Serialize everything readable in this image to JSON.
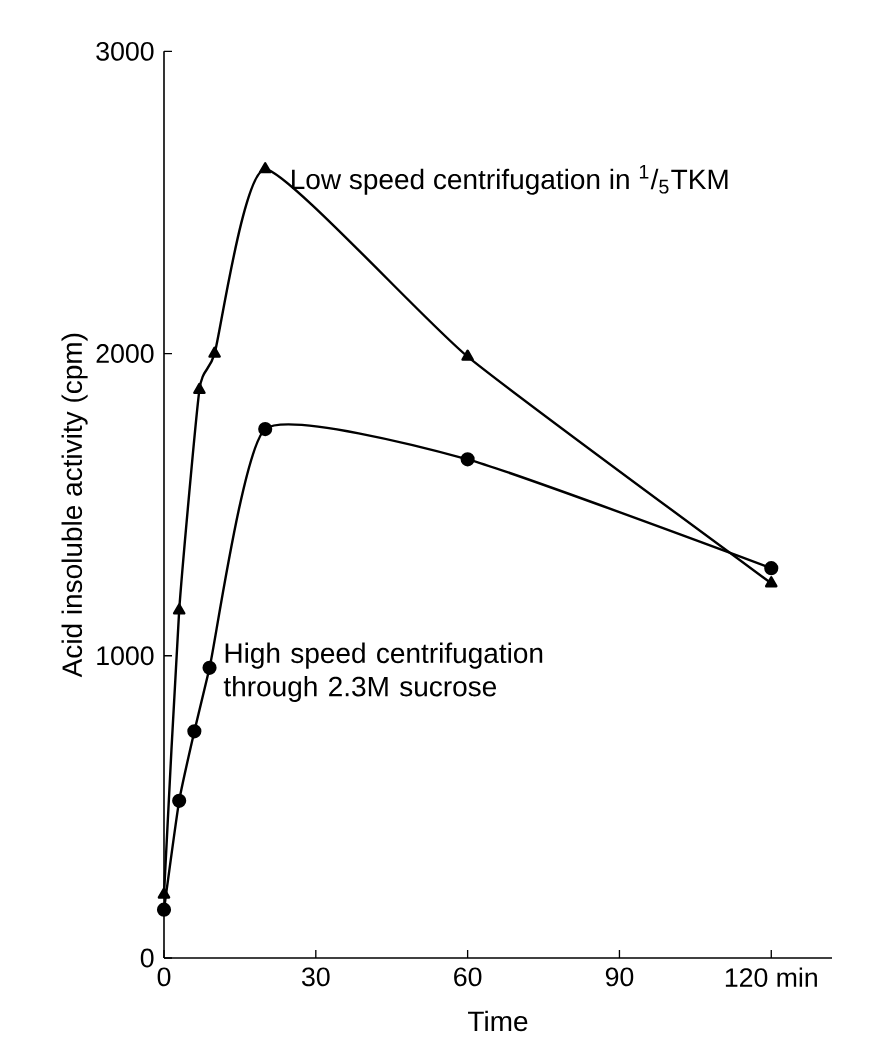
{
  "chart_data": {
    "type": "line",
    "xlabel": "Time",
    "ylabel": "Acid insoluble activity (cpm)",
    "xlim": [
      0,
      132
    ],
    "ylim": [
      0,
      3000
    ],
    "xticks": [
      0,
      30,
      60,
      90,
      {
        "value": 120,
        "label": "120 min"
      }
    ],
    "yticks": [
      0,
      1000,
      2000,
      3000
    ],
    "grid": false,
    "legend": false,
    "series": [
      {
        "name": "Low speed centrifugation in $^{1}$/$_{5}$TKM",
        "color": "#000000",
        "marker": "triangle",
        "x": [
          0,
          3,
          7,
          10,
          20,
          60,
          120
        ],
        "values": [
          210,
          1150,
          1880,
          2000,
          2610,
          1990,
          1240
        ]
      },
      {
        "name": "High speed centrifugation through 2.3M sucrose",
        "color": "#000000",
        "marker": "circle",
        "x": [
          0,
          3,
          6,
          9,
          20,
          60,
          120
        ],
        "values": [
          160,
          520,
          750,
          960,
          1750,
          1650,
          1290
        ]
      }
    ]
  }
}
